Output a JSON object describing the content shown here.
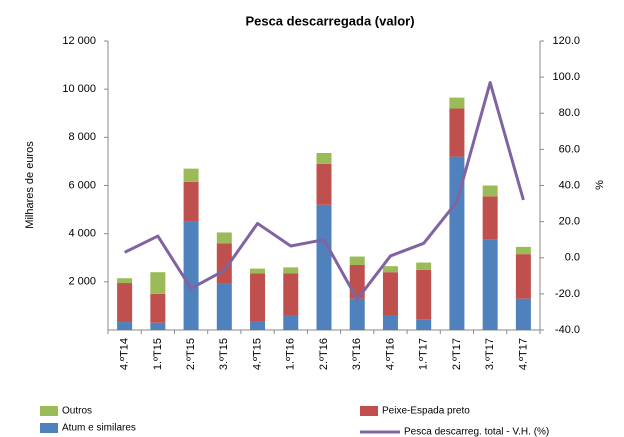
{
  "chart_data": {
    "type": "bar",
    "title": "Pesca descarregada (valor)",
    "ylabel": "Milhares de euros",
    "y2label": "%",
    "stacked": true,
    "categories": [
      "4.ºT14",
      "1.ºT15",
      "2.ºT15",
      "3.ºT15",
      "4.ºT15",
      "1.ºT16",
      "2.ºT16",
      "3.ºT16",
      "4.ºT16",
      "1.ºT17",
      "2.ºT17",
      "3.ºT17",
      "4.ºT17"
    ],
    "series": [
      {
        "name": "Atum e similares",
        "color": "#4f81bd",
        "values": [
          330,
          300,
          4500,
          1950,
          350,
          600,
          5200,
          1300,
          600,
          450,
          7200,
          3750,
          1300
        ]
      },
      {
        "name": "Peixe-Espada preto",
        "color": "#c0504d",
        "values": [
          1620,
          1200,
          1650,
          1650,
          2000,
          1750,
          1700,
          1400,
          1800,
          2050,
          2000,
          1800,
          1850
        ]
      },
      {
        "name": "Outros",
        "color": "#9bbb59",
        "values": [
          200,
          900,
          550,
          450,
          200,
          250,
          450,
          350,
          250,
          300,
          450,
          450,
          300
        ]
      },
      {
        "name": "Pesca descarreg. total - V.H. (%)",
        "color": "#8064a2",
        "type": "line",
        "axis": "y2",
        "values": [
          3,
          12,
          -17,
          -7,
          19,
          6.5,
          10,
          -23,
          1,
          8,
          31,
          97,
          32
        ]
      }
    ],
    "ylim": [
      0,
      12000
    ],
    "yticks": [
      {
        "value": 2000,
        "label": "2 000"
      },
      {
        "value": 4000,
        "label": "4 000"
      },
      {
        "value": 6000,
        "label": "6 000"
      },
      {
        "value": 8000,
        "label": "8 000"
      },
      {
        "value": 10000,
        "label": "10 000"
      },
      {
        "value": 12000,
        "label": "12 000"
      }
    ],
    "y2lim": [
      -40,
      120
    ],
    "y2ticks": [
      {
        "value": -40,
        "label": "-40.0"
      },
      {
        "value": -20,
        "label": "-20.0"
      },
      {
        "value": 0,
        "label": "0.0"
      },
      {
        "value": 20,
        "label": "20.0"
      },
      {
        "value": 40,
        "label": "40.0"
      },
      {
        "value": 60,
        "label": "60.0"
      },
      {
        "value": 80,
        "label": "80.0"
      },
      {
        "value": 100,
        "label": "100.0"
      },
      {
        "value": 120,
        "label": "120.0"
      }
    ],
    "grid": false,
    "legend": "bottom"
  }
}
